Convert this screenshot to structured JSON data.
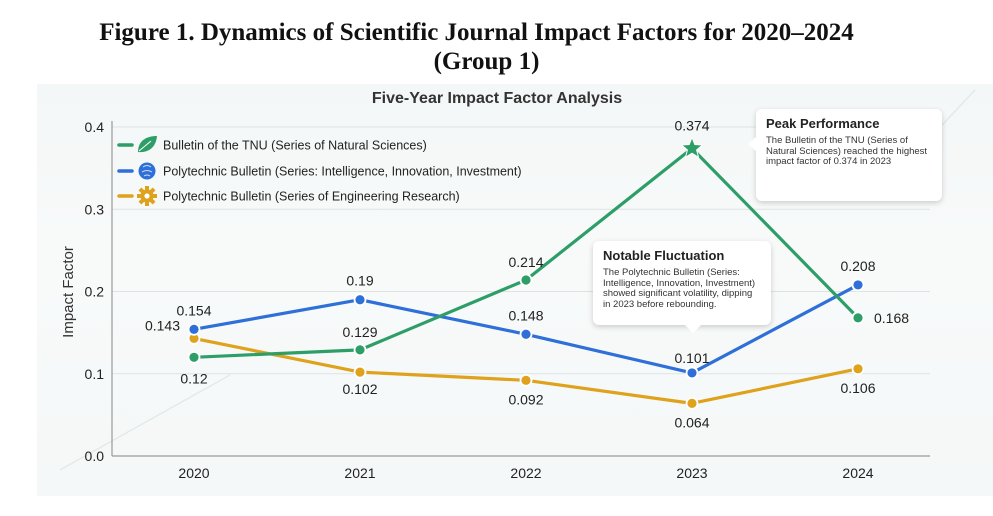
{
  "figure": {
    "title_line1": "Figure 1. Dynamics of Scientific Journal Impact Factors for 2020–2024",
    "title_line2": "(Group 1)"
  },
  "colors": {
    "green": "#2e9e68",
    "blue": "#2f6fd8",
    "orange": "#dea21d",
    "grid": "#dde3e3",
    "axis": "#999999"
  },
  "chart_data": {
    "type": "line",
    "title": "Five-Year Impact Factor Analysis",
    "xlabel": "",
    "ylabel": "Impact Factor",
    "x": [
      "2020",
      "2021",
      "2022",
      "2023",
      "2024"
    ],
    "ylim": [
      0.0,
      0.4
    ],
    "yticks": [
      "0.0",
      "0.1",
      "0.2",
      "0.3",
      "0.4"
    ],
    "grid": true,
    "legend_position": "top-left",
    "series": [
      {
        "name": "Bulletin of the TNU (Series of Natural Sciences)",
        "color_key": "green",
        "icon": "leaf-icon",
        "values": [
          0.12,
          0.129,
          0.214,
          0.374,
          0.168
        ],
        "labels": [
          "0.12",
          "0.129",
          "0.214",
          "0.374",
          "0.168"
        ],
        "peak_marker": "star"
      },
      {
        "name": "Polytechnic Bulletin (Series: Intelligence, Innovation, Investment)",
        "color_key": "blue",
        "icon": "brain-icon",
        "values": [
          0.154,
          0.19,
          0.148,
          0.101,
          0.208
        ],
        "labels": [
          "0.154",
          "0.19",
          "0.148",
          "0.101",
          "0.208"
        ]
      },
      {
        "name": "Polytechnic Bulletin (Series of Engineering Research)",
        "color_key": "orange",
        "icon": "gear-icon",
        "values": [
          0.143,
          0.102,
          0.092,
          0.064,
          0.106
        ],
        "labels": [
          "0.143",
          "0.102",
          "0.092",
          "0.064",
          "0.106"
        ]
      }
    ],
    "annotations": [
      {
        "title": "Peak Performance",
        "text": "The Bulletin of the TNU (Series of Natural Sciences) reached the highest impact factor of 0.374 in 2023"
      },
      {
        "title": "Notable Fluctuation",
        "text": "The Polytechnic Bulletin (Series: Intelligence, Innovation, Investment) showed significant volatility, dipping in 2023 before rebounding."
      }
    ]
  }
}
